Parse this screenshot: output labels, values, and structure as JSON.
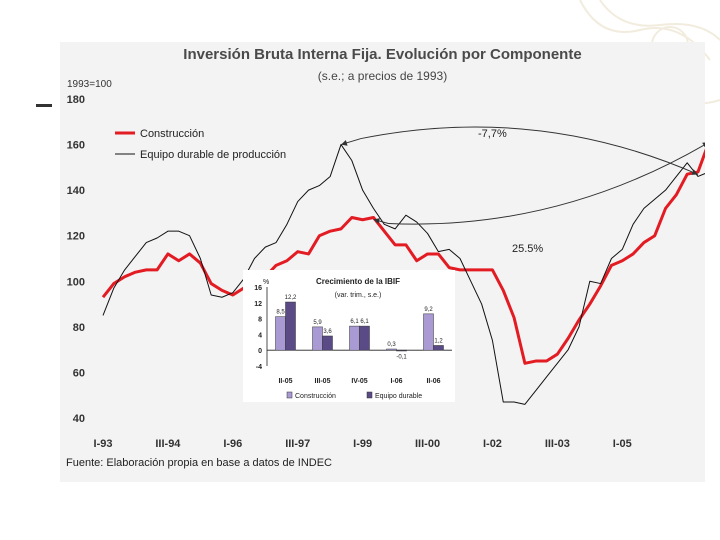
{
  "chart_data": [
    {
      "type": "line",
      "title": "Inversión Bruta Interna Fija. Evolución por Componente",
      "subtitle": "(s.e.; a precios de 1993)",
      "ylabel": "1993=100",
      "ylim": [
        40,
        180
      ],
      "yticks": [
        "40",
        "60",
        "80",
        "100",
        "120",
        "140",
        "160",
        "180"
      ],
      "xticks": [
        "I-93",
        "III-94",
        "I-96",
        "III-97",
        "I-99",
        "III-00",
        "I-02",
        "III-03",
        "I-05"
      ],
      "xtick_positions": [
        0,
        6,
        12,
        18,
        24,
        30,
        36,
        42,
        48
      ],
      "xrange": [
        0,
        55
      ],
      "series": [
        {
          "name": "Construcción",
          "color": "#e31b23",
          "values": [
            93,
            99,
            102,
            104,
            105,
            105,
            112,
            109,
            112,
            108,
            99,
            96,
            94,
            97,
            101,
            102,
            107,
            109,
            113,
            112,
            120,
            122,
            123,
            128,
            127,
            128,
            122,
            116,
            116,
            109,
            112,
            112,
            106,
            105,
            105,
            105,
            105,
            96,
            84,
            64,
            65,
            65,
            68,
            75,
            83,
            90,
            98,
            107,
            109,
            112,
            117,
            120,
            132,
            138,
            147,
            148,
            161
          ]
        },
        {
          "name": "Equipo durable de producción",
          "color": "#111111",
          "values": [
            85,
            97,
            105,
            111,
            117,
            119,
            122,
            122,
            120,
            110,
            94,
            93,
            95,
            101,
            110,
            115,
            117,
            125,
            135,
            140,
            142,
            146,
            160,
            153,
            140,
            132,
            125,
            123,
            129,
            126,
            121,
            113,
            114,
            110,
            100,
            90,
            74,
            47,
            47,
            46,
            52,
            58,
            64,
            70,
            80,
            100,
            99,
            110,
            114,
            125,
            132,
            136,
            140,
            146,
            152,
            146,
            148
          ]
        }
      ],
      "annotations": [
        "-7,7%",
        "25.5%"
      ],
      "source": "Fuente: Elaboración propia en base a datos de INDEC"
    },
    {
      "type": "bar",
      "title": "Crecimiento de la IBIF",
      "subtitle": "(var. trim., s.e.)",
      "ylabel": "%",
      "ylim": [
        -4,
        16
      ],
      "yticks": [
        "-4",
        "0",
        "4",
        "8",
        "12",
        "16"
      ],
      "categories": [
        "II-05",
        "III-05",
        "IV-05",
        "I-06",
        "II-06"
      ],
      "series": [
        {
          "name": "Construcción",
          "color": "#a99ad4",
          "values": [
            8.5,
            5.9,
            6.1,
            0.3,
            9.2
          ],
          "labels": [
            "8,5",
            "5,9",
            "6,1",
            "0,3",
            "9,2"
          ]
        },
        {
          "name": "Equipo durable",
          "color": "#5a4a86",
          "values": [
            12.2,
            3.6,
            6.1,
            -0.1,
            1.2
          ],
          "labels": [
            "12,2",
            "3,6",
            "6,1",
            "-0,1",
            "1,2"
          ]
        }
      ]
    }
  ]
}
